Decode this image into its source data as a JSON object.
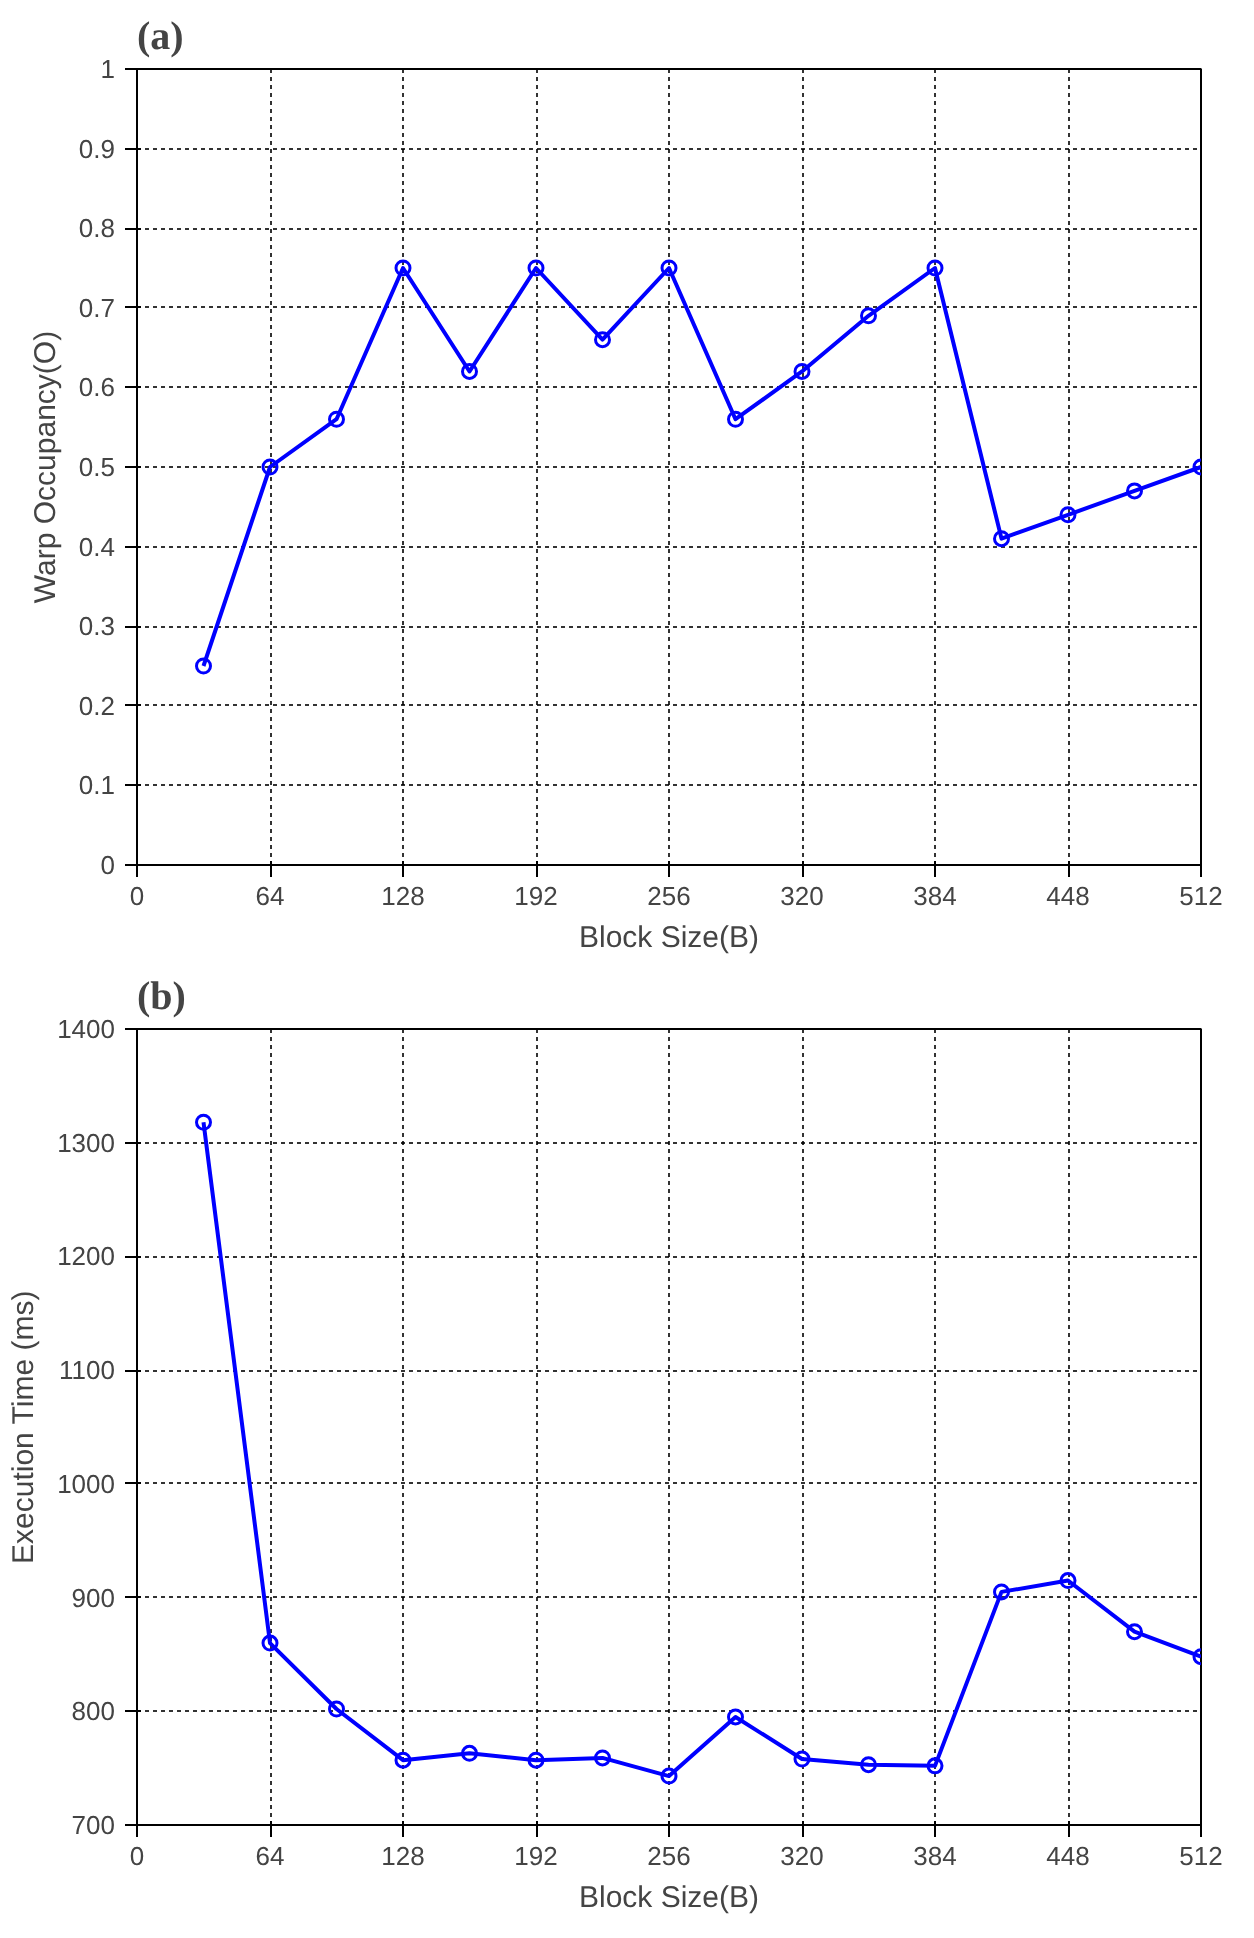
{
  "chart_data": [
    {
      "type": "line",
      "title": "(a)",
      "xlabel": "Block Size(B)",
      "ylabel": "Warp Occupancy(O)",
      "x": [
        32,
        64,
        96,
        128,
        160,
        192,
        224,
        256,
        288,
        320,
        352,
        384,
        416,
        448,
        480,
        512
      ],
      "series": [
        {
          "color": "#0000ff",
          "values": [
            0.25,
            0.5,
            0.56,
            0.75,
            0.62,
            0.75,
            0.66,
            0.75,
            0.56,
            0.62,
            0.69,
            0.75,
            0.41,
            0.44,
            0.47,
            0.5
          ]
        }
      ],
      "xlim": [
        0,
        512
      ],
      "xticks": [
        0,
        64,
        128,
        192,
        256,
        320,
        384,
        448,
        512
      ],
      "ylim": [
        0,
        1
      ],
      "yticks": [
        0,
        0.1,
        0.2,
        0.3,
        0.4,
        0.5,
        0.6,
        0.7,
        0.8,
        0.9,
        1
      ],
      "grid": true,
      "marker": "circle",
      "line_style": "solid"
    },
    {
      "type": "line",
      "title": "(b)",
      "xlabel": "Block Size(B)",
      "ylabel": "Execution Time (ms)",
      "x": [
        32,
        64,
        96,
        128,
        160,
        192,
        224,
        256,
        288,
        320,
        352,
        384,
        416,
        448,
        480,
        512
      ],
      "series": [
        {
          "color": "#0000ff",
          "values": [
            1318,
            860,
            802,
            757,
            763,
            757,
            759,
            743,
            795,
            758,
            753,
            752,
            905,
            915,
            870,
            848
          ]
        }
      ],
      "xlim": [
        0,
        512
      ],
      "xticks": [
        0,
        64,
        128,
        192,
        256,
        320,
        384,
        448,
        512
      ],
      "ylim": [
        700,
        1400
      ],
      "yticks": [
        700,
        800,
        900,
        1000,
        1100,
        1200,
        1300,
        1400
      ],
      "grid": true,
      "marker": "circle",
      "line_style": "solid"
    }
  ]
}
